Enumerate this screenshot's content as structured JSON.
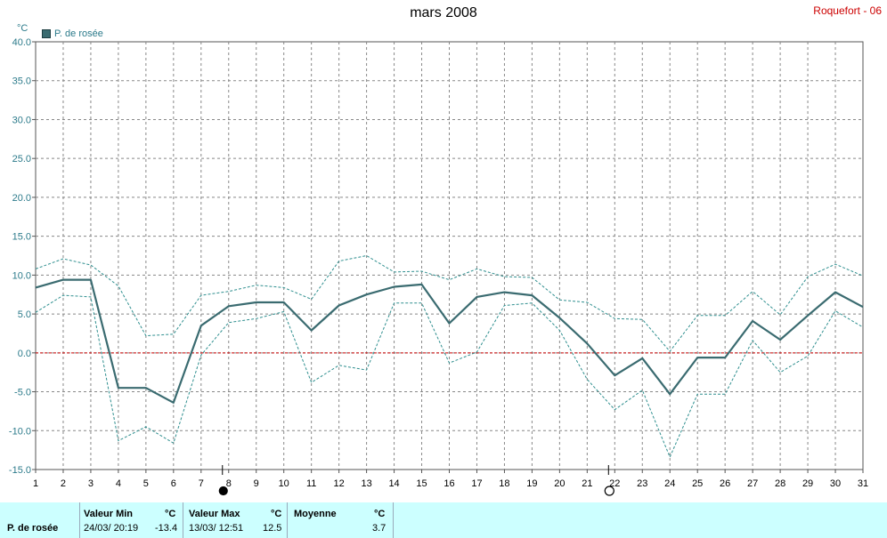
{
  "header": {
    "title": "mars 2008",
    "station": "Roquefort - 06",
    "unit": "°C",
    "legend": "P. de rosée"
  },
  "chart_data": {
    "type": "line",
    "title": "mars 2008",
    "ylabel": "°C",
    "ylim": [
      -15,
      40
    ],
    "yticks": [
      "40.0",
      "35.0",
      "30.0",
      "25.0",
      "20.0",
      "15.0",
      "10.0",
      "5.0",
      "0.0",
      "-5.0",
      "-10.0",
      "-15.0"
    ],
    "x": [
      1,
      2,
      3,
      4,
      5,
      6,
      7,
      8,
      9,
      10,
      11,
      12,
      13,
      14,
      15,
      16,
      17,
      18,
      19,
      20,
      21,
      22,
      23,
      24,
      25,
      26,
      27,
      28,
      29,
      30,
      31
    ],
    "grid": true,
    "legend_position": "top-left",
    "series": [
      {
        "name": "P. de rosée",
        "role": "mean",
        "values": [
          8.4,
          9.4,
          9.4,
          -4.5,
          -4.5,
          -6.4,
          3.5,
          6.0,
          6.5,
          6.5,
          2.9,
          6.1,
          7.5,
          8.5,
          8.8,
          3.8,
          7.2,
          7.8,
          7.4,
          4.5,
          1.2,
          -2.9,
          -0.7,
          -5.3,
          -0.6,
          -0.6,
          4.1,
          1.7,
          4.8,
          7.8,
          5.9
        ]
      },
      {
        "role": "max",
        "values": [
          10.8,
          12.1,
          11.3,
          8.6,
          2.2,
          2.4,
          7.4,
          7.9,
          8.7,
          8.4,
          6.9,
          11.8,
          12.5,
          10.4,
          10.5,
          9.4,
          10.8,
          9.8,
          9.7,
          6.8,
          6.5,
          4.4,
          4.3,
          0.2,
          4.8,
          4.8,
          7.9,
          4.9,
          9.8,
          11.4,
          9.9
        ]
      },
      {
        "role": "min",
        "values": [
          5.2,
          7.4,
          7.2,
          -11.3,
          -9.5,
          -11.6,
          -0.3,
          3.9,
          4.4,
          5.3,
          -3.8,
          -1.6,
          -2.2,
          6.4,
          6.4,
          -1.3,
          0.1,
          6.1,
          6.4,
          2.9,
          -3.4,
          -7.3,
          -4.8,
          -13.4,
          -5.3,
          -5.3,
          1.6,
          -2.5,
          -0.4,
          5.4,
          3.3
        ]
      }
    ],
    "moon_markers": [
      {
        "day": 8,
        "phase": "full"
      },
      {
        "day": 22,
        "phase": "new"
      }
    ],
    "colors": {
      "series": "#3a6b70",
      "band": "#2f8f8f",
      "zero_line": "#cc0000",
      "grid": "#888888"
    }
  },
  "footer": {
    "series_label": "P. de rosée",
    "min_label": "Valeur Min",
    "min_unit": "°C",
    "min_date": "24/03/  20:19",
    "min_value": "-13.4",
    "max_label": "Valeur Max",
    "max_unit": "°C",
    "max_date": "13/03/  12:51",
    "max_value": "12.5",
    "mean_label": "Moyenne",
    "mean_unit": "°C",
    "mean_value": "3.7"
  }
}
